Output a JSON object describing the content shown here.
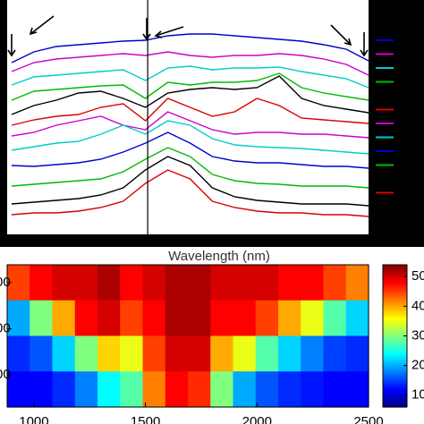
{
  "chart_data": [
    {
      "type": "line",
      "x_label": "Wavelength (nm)",
      "xlim": [
        880,
        2500
      ],
      "ylim": [
        0,
        262
      ],
      "x": [
        900,
        1000,
        1100,
        1200,
        1300,
        1400,
        1500,
        1600,
        1700,
        1800,
        1900,
        2000,
        2100,
        2200,
        2300,
        2400,
        2500
      ],
      "vline": 1510,
      "series": [
        {
          "color": "#0000cc",
          "values": [
            192,
            204,
            210,
            212,
            214,
            216,
            217,
            222,
            224,
            224,
            222,
            220,
            218,
            216,
            212,
            207,
            194
          ]
        },
        {
          "color": "#cc00cc",
          "values": [
            182,
            192,
            196,
            198,
            200,
            202,
            200,
            204,
            200,
            198,
            200,
            200,
            202,
            200,
            196,
            190,
            178
          ]
        },
        {
          "color": "#00cccc",
          "values": [
            167,
            176,
            178,
            180,
            182,
            184,
            172,
            186,
            188,
            184,
            186,
            186,
            187,
            182,
            178,
            174,
            164
          ]
        },
        {
          "color": "#00bb00",
          "values": [
            150,
            160,
            162,
            164,
            166,
            167,
            152,
            170,
            167,
            170,
            170,
            172,
            180,
            164,
            158,
            154,
            150
          ]
        },
        {
          "color": "#000000",
          "values": [
            134,
            144,
            150,
            158,
            160,
            152,
            142,
            158,
            162,
            164,
            162,
            164,
            177,
            152,
            144,
            140,
            136
          ]
        },
        {
          "color": "#dd0000",
          "values": [
            122,
            128,
            132,
            134,
            142,
            146,
            127,
            152,
            142,
            132,
            137,
            152,
            144,
            130,
            128,
            126,
            124
          ]
        },
        {
          "color": "#cc00cc",
          "values": [
            110,
            114,
            122,
            127,
            132,
            122,
            117,
            137,
            127,
            117,
            112,
            114,
            114,
            112,
            112,
            110,
            108
          ]
        },
        {
          "color": "#00cccc",
          "values": [
            94,
            98,
            102,
            104,
            112,
            122,
            112,
            127,
            122,
            107,
            100,
            98,
            97,
            96,
            94,
            92,
            90
          ]
        },
        {
          "color": "#0000cc",
          "values": [
            77,
            76,
            78,
            80,
            84,
            92,
            102,
            114,
            102,
            87,
            82,
            80,
            80,
            78,
            76,
            76,
            74
          ]
        },
        {
          "color": "#00bb00",
          "values": [
            54,
            56,
            58,
            60,
            62,
            70,
            84,
            97,
            87,
            67,
            60,
            57,
            56,
            54,
            54,
            54,
            52
          ]
        },
        {
          "color": "#000000",
          "values": [
            34,
            36,
            38,
            40,
            44,
            52,
            72,
            87,
            77,
            52,
            42,
            38,
            36,
            34,
            34,
            34,
            32
          ]
        },
        {
          "color": "#dd0000",
          "values": [
            22,
            24,
            24,
            26,
            30,
            37,
            57,
            72,
            62,
            37,
            30,
            26,
            24,
            24,
            22,
            22,
            20
          ]
        }
      ]
    },
    {
      "type": "heatmap",
      "xlim": [
        880,
        2500
      ],
      "ylim": [
        0,
        4
      ],
      "xticks": [
        1000,
        1500,
        2000,
        2500
      ],
      "yticks": [
        {
          "value": 3.5,
          "label": "00"
        },
        {
          "value": 2.2,
          "label": "00"
        },
        {
          "value": 0.9,
          "label": "00"
        }
      ],
      "clim": [
        6,
        54
      ],
      "cticks": [
        50,
        40,
        30,
        20,
        10
      ],
      "values": [
        [
          45,
          48,
          50,
          50,
          52,
          48,
          50,
          52,
          52,
          50,
          50,
          50,
          48,
          48,
          45,
          42
        ],
        [
          20,
          30,
          40,
          48,
          50,
          45,
          48,
          52,
          52,
          48,
          48,
          45,
          40,
          35,
          28,
          22
        ],
        [
          14,
          16,
          22,
          30,
          38,
          35,
          45,
          50,
          50,
          40,
          35,
          28,
          22,
          18,
          15,
          14
        ],
        [
          12,
          12,
          14,
          18,
          24,
          28,
          42,
          48,
          46,
          30,
          20,
          16,
          14,
          13,
          12,
          12
        ]
      ]
    }
  ]
}
